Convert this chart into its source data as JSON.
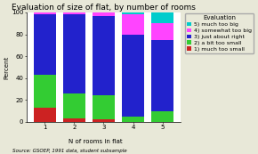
{
  "title": "Evaluation of size of flat, by number of rooms",
  "xlabel": "N of rooms in flat",
  "ylabel": "Percent",
  "footnote": "Source: GSOEP, 1991 data, student subsample",
  "categories": [
    1,
    2,
    3,
    4,
    5
  ],
  "legend_labels": [
    "5) much too big",
    "4) somewhat too big",
    "3) just about right",
    "2) a bit too small",
    "1) much too small"
  ],
  "colors": [
    "#00cccc",
    "#ff44ff",
    "#2222cc",
    "#33cc33",
    "#cc2222"
  ],
  "data": {
    "much_too_small": [
      13,
      3,
      2,
      0,
      0
    ],
    "a_bit_too_small": [
      30,
      23,
      22,
      5,
      10
    ],
    "just_about_right": [
      55,
      72,
      73,
      75,
      65
    ],
    "somewhat_too_big": [
      2,
      2,
      3,
      18,
      15
    ],
    "much_too_big": [
      0,
      0,
      0,
      2,
      10
    ]
  },
  "ylim": [
    0,
    100
  ],
  "yticks": [
    0,
    20,
    40,
    60,
    80,
    100
  ],
  "bg_color": "#e8e8d8",
  "plot_bg_color": "#ffffff",
  "bar_width": 0.75,
  "title_fontsize": 6.5,
  "axis_fontsize": 5,
  "tick_fontsize": 5,
  "legend_fontsize": 4.5,
  "legend_title_fontsize": 5,
  "footnote_fontsize": 4
}
